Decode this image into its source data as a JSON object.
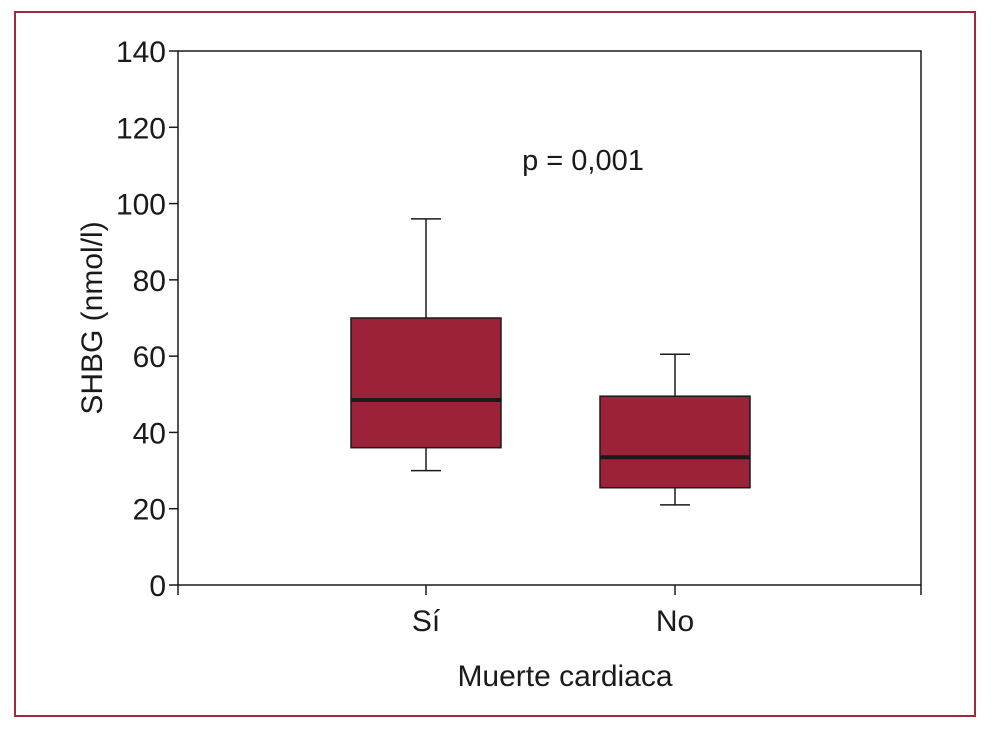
{
  "chart_data": {
    "type": "box",
    "title": "",
    "xlabel": "Muerte cardiaca",
    "ylabel": "SHBG (nmol/l)",
    "ylim": [
      0,
      140
    ],
    "yticks": [
      0,
      20,
      40,
      60,
      80,
      100,
      120,
      140
    ],
    "grid": false,
    "annotation": "p = 0,001",
    "box_color": "#9c2239",
    "categories": [
      "Sí",
      "No"
    ],
    "boxes": [
      {
        "category": "Sí",
        "whisker_low": 30,
        "q1": 36,
        "median": 48.5,
        "q3": 70,
        "whisker_high": 96
      },
      {
        "category": "No",
        "whisker_low": 21,
        "q1": 25.5,
        "median": 33.5,
        "q3": 49.5,
        "whisker_high": 60.5
      }
    ]
  }
}
